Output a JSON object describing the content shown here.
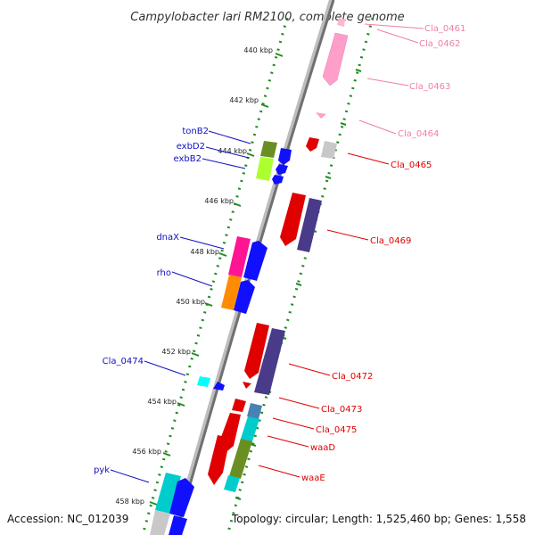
{
  "title": "Campylobacter lari RM2100, complete genome",
  "accession": "Accession: NC_012039",
  "topology": "Topology: circular; Length: 1,525,460 bp; Genes: 1,558",
  "ticks": [
    "440 kbp",
    "442 kbp",
    "444 kbp",
    "446 kbp",
    "448 kbp",
    "450 kbp",
    "452 kbp",
    "454 kbp",
    "456 kbp",
    "458 kbp"
  ],
  "labels_left": [
    "tonB2",
    "exbD2",
    "exbB2",
    "dnaX",
    "rho",
    "Cla_0474",
    "pyk"
  ],
  "labels_right": [
    "Cla_0461",
    "Cla_0462",
    "Cla_0463",
    "Cla_0464",
    "Cla_0465",
    "Cla_0469",
    "Cla_0472",
    "Cla_0473",
    "Cla_0475",
    "waaD",
    "waaE"
  ],
  "colors": {
    "backbone": "#808080",
    "ruler": "#228B22",
    "left_label": "#1010c0",
    "right_label": "#e00000",
    "faded_label": "#f080a0"
  }
}
